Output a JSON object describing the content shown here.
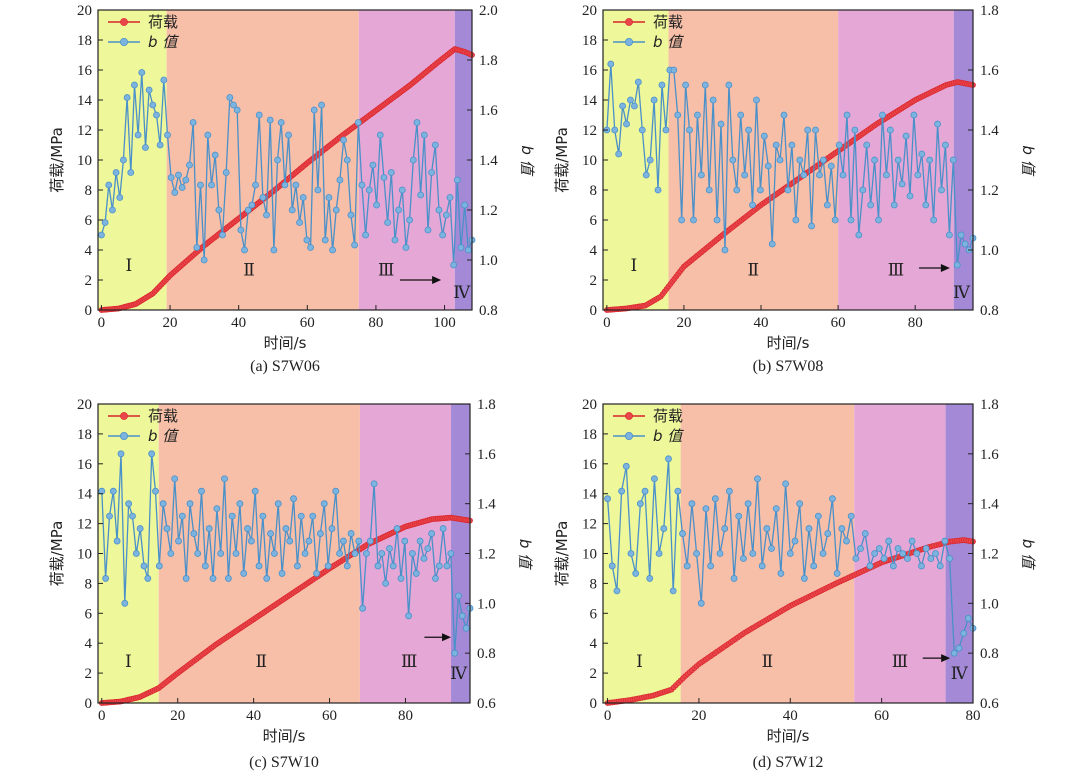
{
  "figure": {
    "colors": {
      "load": "#d9232a",
      "load_marker": "#e8464b",
      "bvalue": "#4a90c9",
      "bvalue_marker": "#7db4df",
      "stage_fill": [
        "#eef79a",
        "#f7bfa8",
        "#e5a7d6",
        "#a48ad6"
      ],
      "axis": "#222222"
    }
  },
  "chart_data": [
    {
      "type": "line",
      "id": "a",
      "caption": "(a) S7W06",
      "xlabel": "时间/s",
      "ylabel_left": "荷载/MPa",
      "ylabel_right": "b 值",
      "xlim": [
        -1,
        108
      ],
      "ylim_left": [
        0,
        20
      ],
      "ylim_right": [
        0.8,
        2.0
      ],
      "xticks": [
        0,
        20,
        40,
        60,
        80,
        100
      ],
      "yticks_left": [
        0,
        2,
        4,
        6,
        8,
        10,
        12,
        14,
        16,
        18,
        20
      ],
      "yticks_right": [
        "0.8",
        "1.0",
        "1.2",
        "1.4",
        "1.6",
        "1.8",
        "2.0"
      ],
      "legend": [
        "荷载",
        "b 值"
      ],
      "stage_labels": [
        "Ⅰ",
        "Ⅱ",
        "Ⅲ",
        "Ⅳ"
      ],
      "stage_bounds": [
        -1,
        19,
        75,
        103,
        108
      ],
      "stage_label_pos": [
        [
          8,
          2.6
        ],
        [
          43,
          2.3
        ],
        [
          83,
          2.3
        ],
        [
          105,
          0.8
        ]
      ],
      "arrow": {
        "from": [
          87,
          2.0
        ],
        "to": [
          99,
          2.0
        ]
      },
      "load": {
        "name": "荷载",
        "t_max": 108,
        "points": [
          [
            0,
            0
          ],
          [
            5,
            0.1
          ],
          [
            10,
            0.4
          ],
          [
            15,
            1.1
          ],
          [
            20,
            2.3
          ],
          [
            30,
            4.3
          ],
          [
            40,
            6.1
          ],
          [
            50,
            7.9
          ],
          [
            60,
            9.8
          ],
          [
            70,
            11.6
          ],
          [
            80,
            13.3
          ],
          [
            90,
            15.0
          ],
          [
            98,
            16.5
          ],
          [
            103,
            17.4
          ],
          [
            106,
            17.2
          ],
          [
            108,
            17.0
          ]
        ]
      },
      "series": [
        {
          "name": "b 值",
          "t_max": 108,
          "values": [
            1.1,
            1.15,
            1.3,
            1.2,
            1.35,
            1.25,
            1.4,
            1.65,
            1.35,
            1.7,
            1.5,
            1.75,
            1.45,
            1.68,
            1.62,
            1.58,
            1.46,
            1.72,
            1.5,
            1.33,
            1.27,
            1.34,
            1.29,
            1.32,
            1.38,
            1.55,
            1.05,
            1.3,
            1.0,
            1.5,
            1.3,
            1.42,
            1.2,
            1.1,
            1.35,
            1.65,
            1.62,
            1.6,
            1.12,
            1.04,
            1.2,
            1.22,
            1.3,
            1.58,
            1.25,
            1.18,
            1.56,
            1.04,
            1.4,
            1.55,
            1.3,
            1.5,
            1.2,
            1.3,
            1.15,
            1.25,
            1.08,
            1.05,
            1.6,
            1.28,
            1.62,
            1.08,
            1.25,
            1.04,
            1.2,
            1.32,
            1.48,
            1.4,
            1.18,
            1.06,
            1.55,
            1.3,
            1.1,
            1.28,
            1.38,
            1.22,
            1.5,
            1.33,
            1.15,
            1.35,
            1.08,
            1.2,
            1.28,
            1.05,
            1.16,
            1.4,
            1.55,
            1.26,
            1.5,
            1.12,
            1.35,
            1.46,
            1.2,
            1.1,
            1.18,
            1.25,
            0.98,
            1.32,
            1.05,
            1.22,
            1.04,
            1.08
          ]
        }
      ]
    },
    {
      "type": "line",
      "id": "b",
      "caption": "(b) S7W08",
      "xlabel": "时间/s",
      "ylabel_left": "荷载/MPa",
      "ylabel_right": "b 值",
      "xlim": [
        -1,
        95
      ],
      "ylim_left": [
        0,
        20
      ],
      "ylim_right": [
        0.8,
        1.8
      ],
      "xticks": [
        0,
        20,
        40,
        60,
        80
      ],
      "yticks_left": [
        0,
        2,
        4,
        6,
        8,
        10,
        12,
        14,
        16,
        18,
        20
      ],
      "yticks_right": [
        "0.8",
        "1.0",
        "1.2",
        "1.4",
        "1.6",
        "1.8"
      ],
      "legend": [
        "荷载",
        "b 值"
      ],
      "stage_labels": [
        "Ⅰ",
        "Ⅱ",
        "Ⅲ",
        "Ⅳ"
      ],
      "stage_bounds": [
        -1,
        16,
        60,
        90,
        95
      ],
      "stage_label_pos": [
        [
          7,
          2.6
        ],
        [
          38,
          2.3
        ],
        [
          75,
          2.3
        ],
        [
          92,
          0.8
        ]
      ],
      "arrow": {
        "from": [
          81,
          2.8
        ],
        "to": [
          89,
          2.8
        ]
      },
      "load": {
        "name": "荷载",
        "t_max": 95,
        "points": [
          [
            0,
            0
          ],
          [
            5,
            0.1
          ],
          [
            10,
            0.3
          ],
          [
            14,
            0.9
          ],
          [
            20,
            2.9
          ],
          [
            30,
            5.0
          ],
          [
            40,
            7.0
          ],
          [
            50,
            8.8
          ],
          [
            60,
            10.6
          ],
          [
            70,
            12.4
          ],
          [
            80,
            14.0
          ],
          [
            88,
            15.0
          ],
          [
            91,
            15.2
          ],
          [
            95,
            15.0
          ]
        ]
      },
      "series": [
        {
          "name": "b 值",
          "t_max": 95,
          "values": [
            1.4,
            1.62,
            1.4,
            1.32,
            1.48,
            1.42,
            1.5,
            1.48,
            1.56,
            1.4,
            1.25,
            1.3,
            1.5,
            1.2,
            1.55,
            1.4,
            1.6,
            1.6,
            1.45,
            1.1,
            1.55,
            1.4,
            1.1,
            1.45,
            1.25,
            1.55,
            1.2,
            1.5,
            1.1,
            1.42,
            1.0,
            1.55,
            1.3,
            1.2,
            1.45,
            1.25,
            1.4,
            1.15,
            1.5,
            1.2,
            1.38,
            1.28,
            1.02,
            1.35,
            1.3,
            1.45,
            1.2,
            1.35,
            1.1,
            1.3,
            1.25,
            1.4,
            1.08,
            1.4,
            1.25,
            1.3,
            1.15,
            1.28,
            1.1,
            1.35,
            1.25,
            1.45,
            1.1,
            1.4,
            1.05,
            1.2,
            1.35,
            1.15,
            1.3,
            1.1,
            1.45,
            1.25,
            1.4,
            1.15,
            1.3,
            1.22,
            1.38,
            1.18,
            1.45,
            1.25,
            1.32,
            1.15,
            1.3,
            1.1,
            1.42,
            1.2,
            1.35,
            1.05,
            1.3,
            0.95,
            1.05,
            1.02,
            1.0,
            1.04
          ]
        }
      ]
    },
    {
      "type": "line",
      "id": "c",
      "caption": "(c) S7W10",
      "xlabel": "时间/s",
      "ylabel_left": "荷载/MPa",
      "ylabel_right": "b 值",
      "xlim": [
        -1,
        97
      ],
      "ylim_left": [
        0,
        20
      ],
      "ylim_right": [
        0.6,
        1.8
      ],
      "xticks": [
        0,
        20,
        40,
        60,
        80
      ],
      "yticks_left": [
        0,
        2,
        4,
        6,
        8,
        10,
        12,
        14,
        16,
        18,
        20
      ],
      "yticks_right": [
        "0.6",
        "0.8",
        "1.0",
        "1.2",
        "1.4",
        "1.6",
        "1.8"
      ],
      "legend": [
        "荷载",
        "b 值"
      ],
      "stage_labels": [
        "Ⅰ",
        "Ⅱ",
        "Ⅲ",
        "Ⅳ"
      ],
      "stage_bounds": [
        -1,
        15,
        68,
        92,
        97
      ],
      "stage_label_pos": [
        [
          7,
          2.4
        ],
        [
          42,
          2.4
        ],
        [
          81,
          2.4
        ],
        [
          94,
          1.6
        ]
      ],
      "arrow": {
        "from": [
          85,
          4.4
        ],
        "to": [
          92,
          4.4
        ]
      },
      "load": {
        "name": "荷载",
        "t_max": 97,
        "points": [
          [
            0,
            0
          ],
          [
            5,
            0.1
          ],
          [
            10,
            0.4
          ],
          [
            15,
            1.0
          ],
          [
            20,
            2.0
          ],
          [
            30,
            3.9
          ],
          [
            40,
            5.6
          ],
          [
            50,
            7.3
          ],
          [
            60,
            9.0
          ],
          [
            70,
            10.6
          ],
          [
            80,
            11.8
          ],
          [
            87,
            12.3
          ],
          [
            92,
            12.4
          ],
          [
            97,
            12.2
          ]
        ]
      },
      "series": [
        {
          "name": "b 值",
          "t_max": 97,
          "values": [
            1.45,
            1.1,
            1.35,
            1.45,
            1.25,
            1.6,
            1.0,
            1.4,
            1.35,
            1.2,
            1.3,
            1.15,
            1.1,
            1.6,
            1.45,
            1.15,
            1.4,
            1.3,
            1.2,
            1.5,
            1.25,
            1.35,
            1.1,
            1.4,
            1.28,
            1.2,
            1.45,
            1.15,
            1.3,
            1.1,
            1.38,
            1.2,
            1.5,
            1.1,
            1.35,
            1.2,
            1.4,
            1.12,
            1.3,
            1.25,
            1.45,
            1.15,
            1.35,
            1.1,
            1.28,
            1.2,
            1.4,
            1.12,
            1.3,
            1.25,
            1.42,
            1.15,
            1.35,
            1.2,
            1.25,
            1.35,
            1.12,
            1.28,
            1.4,
            1.15,
            1.3,
            1.45,
            1.2,
            1.25,
            1.15,
            1.28,
            1.2,
            1.25,
            0.98,
            1.2,
            1.25,
            1.48,
            1.15,
            1.2,
            1.08,
            1.22,
            1.15,
            1.3,
            1.1,
            1.25,
            0.95,
            1.2,
            1.12,
            1.25,
            1.18,
            1.22,
            1.28,
            1.1,
            1.15,
            1.3,
            1.15,
            1.2,
            0.8,
            1.03,
            0.95,
            0.9,
            0.98
          ]
        }
      ]
    },
    {
      "type": "line",
      "id": "d",
      "caption": "(d) S7W12",
      "xlabel": "时间/s",
      "ylabel_left": "荷载/MPa",
      "ylabel_right": "b 值",
      "xlim": [
        -1,
        80
      ],
      "ylim_left": [
        0,
        20
      ],
      "ylim_right": [
        0.6,
        1.8
      ],
      "xticks": [
        0,
        20,
        40,
        60,
        80
      ],
      "yticks_left": [
        0,
        2,
        4,
        6,
        8,
        10,
        12,
        14,
        16,
        18,
        20
      ],
      "yticks_right": [
        "0.6",
        "0.8",
        "1.0",
        "1.2",
        "1.4",
        "1.6",
        "1.8"
      ],
      "legend": [
        "荷载",
        "b 值"
      ],
      "stage_labels": [
        "Ⅰ",
        "Ⅱ",
        "Ⅲ",
        "Ⅳ"
      ],
      "stage_bounds": [
        -1,
        16,
        54,
        74,
        80
      ],
      "stage_label_pos": [
        [
          7,
          2.4
        ],
        [
          35,
          2.4
        ],
        [
          64,
          2.4
        ],
        [
          77,
          1.6
        ]
      ],
      "arrow": {
        "from": [
          69,
          3.0
        ],
        "to": [
          75,
          3.0
        ]
      },
      "load": {
        "name": "荷载",
        "t_max": 80,
        "points": [
          [
            0,
            0
          ],
          [
            5,
            0.2
          ],
          [
            10,
            0.5
          ],
          [
            14,
            0.9
          ],
          [
            17,
            1.8
          ],
          [
            20,
            2.6
          ],
          [
            30,
            4.7
          ],
          [
            40,
            6.5
          ],
          [
            50,
            8.0
          ],
          [
            60,
            9.4
          ],
          [
            70,
            10.4
          ],
          [
            75,
            10.8
          ],
          [
            78,
            10.9
          ],
          [
            80,
            10.8
          ]
        ]
      },
      "series": [
        {
          "name": "b 值",
          "t_max": 80,
          "values": [
            1.42,
            1.15,
            1.05,
            1.45,
            1.55,
            1.2,
            1.12,
            1.4,
            1.45,
            1.1,
            1.5,
            1.2,
            1.3,
            1.58,
            1.05,
            1.45,
            1.28,
            1.15,
            1.4,
            1.2,
            1.0,
            1.38,
            1.15,
            1.42,
            1.2,
            1.3,
            1.45,
            1.1,
            1.35,
            1.18,
            1.4,
            1.2,
            1.5,
            1.15,
            1.3,
            1.22,
            1.38,
            1.12,
            1.48,
            1.2,
            1.25,
            1.4,
            1.1,
            1.3,
            1.15,
            1.35,
            1.2,
            1.28,
            1.42,
            1.12,
            1.3,
            1.25,
            1.35,
            1.18,
            1.22,
            1.28,
            1.15,
            1.2,
            1.22,
            1.18,
            1.25,
            1.15,
            1.22,
            1.2,
            1.18,
            1.25,
            1.2,
            1.15,
            1.22,
            1.18,
            1.2,
            1.15,
            1.25,
            1.18,
            0.8,
            0.82,
            0.88,
            0.94,
            0.9
          ]
        }
      ]
    }
  ]
}
